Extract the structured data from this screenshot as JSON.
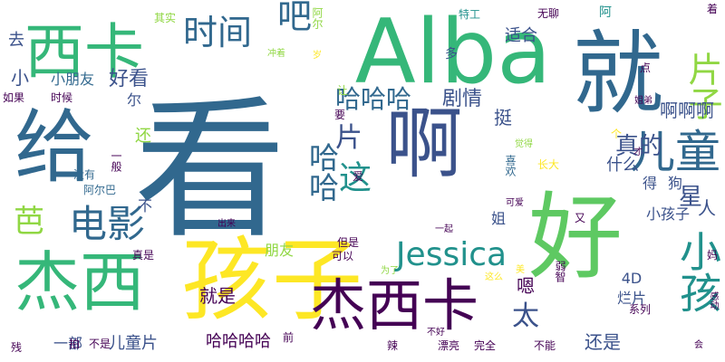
{
  "palette": {
    "purple": "#440154",
    "indigo": "#3b528b",
    "blue": "#31688e",
    "teal": "#21918c",
    "green": "#35b779",
    "lime": "#90d743",
    "yellow": "#fde725"
  },
  "words": [
    {
      "text": "看",
      "color": "#31688e"
    },
    {
      "text": "Alba",
      "color": "#35b779"
    },
    {
      "text": "就",
      "color": "#31688e"
    },
    {
      "text": "好",
      "color": "#5ec962"
    },
    {
      "text": "孩子",
      "color": "#fde725"
    },
    {
      "text": "给",
      "color": "#31688e"
    },
    {
      "text": "啊",
      "color": "#3b528b"
    },
    {
      "text": "杰西",
      "color": "#35b779"
    },
    {
      "text": "西卡",
      "color": "#35b779"
    },
    {
      "text": "杰西卡",
      "color": "#440154"
    },
    {
      "text": "儿童",
      "color": "#31688e"
    },
    {
      "text": "小孩",
      "color": "#21918c"
    },
    {
      "text": "电影",
      "color": "#31688e"
    },
    {
      "text": "片子",
      "color": "#90d743"
    },
    {
      "text": "时间",
      "color": "#31688e"
    },
    {
      "text": "吧",
      "color": "#31688e"
    },
    {
      "text": "这",
      "color": "#21918c"
    },
    {
      "text": "Jessica",
      "color": "#21918c"
    },
    {
      "text": "哈哈",
      "color": "#31688e"
    },
    {
      "text": "哈哈哈",
      "color": "#31688e"
    },
    {
      "text": "真的",
      "color": "#3b528b"
    },
    {
      "text": "芭",
      "color": "#90d743"
    },
    {
      "text": "片",
      "color": "#3b528b"
    },
    {
      "text": "太",
      "color": "#3b528b"
    },
    {
      "text": "星",
      "color": "#3b528b"
    },
    {
      "text": "剧情",
      "color": "#3b528b"
    },
    {
      "text": "好看",
      "color": "#3b528b"
    },
    {
      "text": "小",
      "color": "#3b528b"
    },
    {
      "text": "去",
      "color": "#3b528b"
    },
    {
      "text": "挺",
      "color": "#3b528b"
    },
    {
      "text": "适合",
      "color": "#3b528b"
    },
    {
      "text": "多",
      "color": "#3b528b"
    },
    {
      "text": "小朋友",
      "color": "#31688e"
    },
    {
      "text": "啊啊啊",
      "color": "#3b528b"
    },
    {
      "text": "人",
      "color": "#3b528b"
    },
    {
      "text": "小孩子",
      "color": "#3b528b"
    },
    {
      "text": "什么",
      "color": "#3b528b"
    },
    {
      "text": "还是",
      "color": "#3b528b"
    },
    {
      "text": "嗯",
      "color": "#440154"
    },
    {
      "text": "不",
      "color": "#3b528b"
    },
    {
      "text": "就是",
      "color": "#440154"
    },
    {
      "text": "哈哈哈哈",
      "color": "#440154"
    },
    {
      "text": "儿童片",
      "color": "#3b528b"
    },
    {
      "text": "一部",
      "color": "#3b528b"
    },
    {
      "text": "朋友",
      "color": "#90d743"
    },
    {
      "text": "姐",
      "color": "#3b528b"
    },
    {
      "text": "4D",
      "color": "#3b528b"
    },
    {
      "text": "烂片",
      "color": "#3b528b"
    },
    {
      "text": "得",
      "color": "#3b528b"
    },
    {
      "text": "狗",
      "color": "#3b528b"
    },
    {
      "text": "还",
      "color": "#90d743"
    },
    {
      "text": "尔",
      "color": "#3b528b"
    },
    {
      "text": "其实",
      "color": "#90d743"
    },
    {
      "text": "无聊",
      "color": "#440154"
    },
    {
      "text": "阿",
      "color": "#21918c"
    },
    {
      "text": "特工",
      "color": "#21918c"
    },
    {
      "text": "阿尔",
      "color": "#90d743"
    },
    {
      "text": "点",
      "color": "#440154"
    },
    {
      "text": "着",
      "color": "#440154"
    },
    {
      "text": "冲着",
      "color": "#90d743"
    },
    {
      "text": "岁",
      "color": "#fde725"
    },
    {
      "text": "如果",
      "color": "#440154"
    },
    {
      "text": "时候",
      "color": "#440154"
    },
    {
      "text": "让",
      "color": "#90d743"
    },
    {
      "text": "要",
      "color": "#440154"
    },
    {
      "text": "姐弟",
      "color": "#440154"
    },
    {
      "text": "个",
      "color": "#fde725"
    },
    {
      "text": "觉得",
      "color": "#90d743"
    },
    {
      "text": "才",
      "color": "#440154"
    },
    {
      "text": "长大",
      "color": "#fde725"
    },
    {
      "text": "喜欢",
      "color": "#31688e"
    },
    {
      "text": "一般",
      "color": "#440154"
    },
    {
      "text": "没有",
      "color": "#31688e"
    },
    {
      "text": "阿尔巴",
      "color": "#31688e"
    },
    {
      "text": "爱",
      "color": "#440154"
    },
    {
      "text": "可爱",
      "color": "#440154"
    },
    {
      "text": "又",
      "color": "#440154"
    },
    {
      "text": "出来",
      "color": "#440154"
    },
    {
      "text": "一起",
      "color": "#440154"
    },
    {
      "text": "真是",
      "color": "#440154"
    },
    {
      "text": "但是",
      "color": "#440154"
    },
    {
      "text": "可以",
      "color": "#440154"
    },
    {
      "text": "为了",
      "color": "#90d743"
    },
    {
      "text": "这么",
      "color": "#fde725"
    },
    {
      "text": "美",
      "color": "#fde725"
    },
    {
      "text": "弱智",
      "color": "#440154"
    },
    {
      "text": "妈",
      "color": "#440154"
    },
    {
      "text": "系列",
      "color": "#440154"
    },
    {
      "text": "残",
      "color": "#440154"
    },
    {
      "text": "拍",
      "color": "#440154"
    },
    {
      "text": "不是",
      "color": "#440154"
    },
    {
      "text": "前",
      "color": "#440154"
    },
    {
      "text": "辣",
      "color": "#440154"
    },
    {
      "text": "不好",
      "color": "#440154"
    },
    {
      "text": "漂亮",
      "color": "#440154"
    },
    {
      "text": "完全",
      "color": "#440154"
    },
    {
      "text": "不能",
      "color": "#440154"
    },
    {
      "text": "会",
      "color": "#440154"
    },
    {
      "text": "感动",
      "color": "#440154"
    }
  ]
}
